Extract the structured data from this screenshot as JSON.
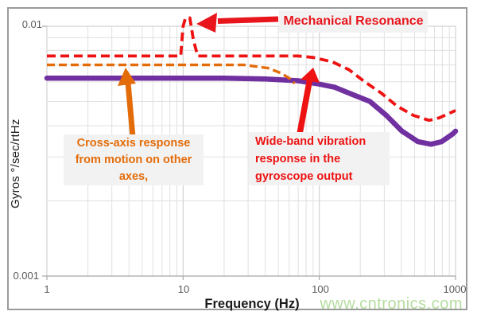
{
  "watermark": "www.cntronics.com",
  "x_axis": {
    "title": "Frequency (Hz)",
    "ticks": [
      "1",
      "10",
      "100",
      "1000"
    ]
  },
  "y_axis": {
    "title": "Gyros °/sec/rtHz",
    "tick_top": "0.01",
    "tick_bottom": "0.001"
  },
  "annotations": {
    "mechanical": {
      "label": "Mechanical Resonance",
      "color": "#e8151c"
    },
    "cross_axis": {
      "lines": [
        "Cross-axis response",
        "from motion on other",
        "axes,"
      ],
      "color": "#e36c09"
    },
    "wideband": {
      "lines": [
        "Wide-band vibration",
        "response in the",
        "gyroscope output"
      ],
      "color": "#ee1212"
    }
  },
  "colors": {
    "grid_minor": "#e0e0e0",
    "grid_major": "#c9c9c9",
    "axis_line": "#a8a8a8",
    "callout_bg": "#f2f2f2",
    "watermark": "#b5dd9f"
  },
  "chart_data": {
    "type": "line",
    "title": "",
    "xlabel": "Frequency (Hz)",
    "ylabel": "Gyros °/sec/rtHz",
    "x_scale": "log",
    "y_scale": "log",
    "xlim": [
      1,
      1000
    ],
    "ylim": [
      0.001,
      0.01
    ],
    "grid": true,
    "legend_position": "none",
    "series": [
      {
        "name": "Wide-band vibration response in the gyroscope output",
        "color": "#7030a0",
        "style": "solid",
        "points": [
          [
            1,
            0.0062
          ],
          [
            20,
            0.0062
          ],
          [
            40,
            0.00615
          ],
          [
            70,
            0.00605
          ],
          [
            95,
            0.0059
          ],
          [
            130,
            0.0057
          ],
          [
            165,
            0.0054
          ],
          [
            235,
            0.005
          ],
          [
            310,
            0.0044
          ],
          [
            405,
            0.0038
          ],
          [
            530,
            0.00345
          ],
          [
            660,
            0.00337
          ],
          [
            790,
            0.00345
          ],
          [
            950,
            0.0037
          ],
          [
            1000,
            0.0038
          ]
        ]
      },
      {
        "name": "Cross-axis response from motion on other axes",
        "color": "#e36c09",
        "style": "dashed",
        "points": [
          [
            1,
            0.007
          ],
          [
            28,
            0.007
          ],
          [
            42,
            0.0068
          ],
          [
            52,
            0.0065
          ],
          [
            60,
            0.0062
          ],
          [
            66,
            0.0059
          ]
        ]
      },
      {
        "name": "Gyro output response with mechanical resonance peak",
        "color": "#ee1212",
        "style": "dashed",
        "points": [
          [
            1,
            0.0076
          ],
          [
            8,
            0.0076
          ],
          [
            9.6,
            0.0076
          ],
          [
            10,
            0.01
          ],
          [
            10.4,
            0.0108
          ],
          [
            11.2,
            0.0108
          ],
          [
            11.9,
            0.0088
          ],
          [
            12.8,
            0.0076
          ],
          [
            30,
            0.0076
          ],
          [
            70,
            0.0076
          ],
          [
            90,
            0.0075
          ],
          [
            125,
            0.0072
          ],
          [
            165,
            0.0067
          ],
          [
            215,
            0.006
          ],
          [
            285,
            0.0054
          ],
          [
            370,
            0.0048
          ],
          [
            490,
            0.0044
          ],
          [
            640,
            0.0042
          ],
          [
            760,
            0.0043
          ],
          [
            1000,
            0.0046
          ]
        ]
      }
    ],
    "resonance_peak": {
      "frequency_hz": 10.5,
      "value": 0.0108
    }
  }
}
